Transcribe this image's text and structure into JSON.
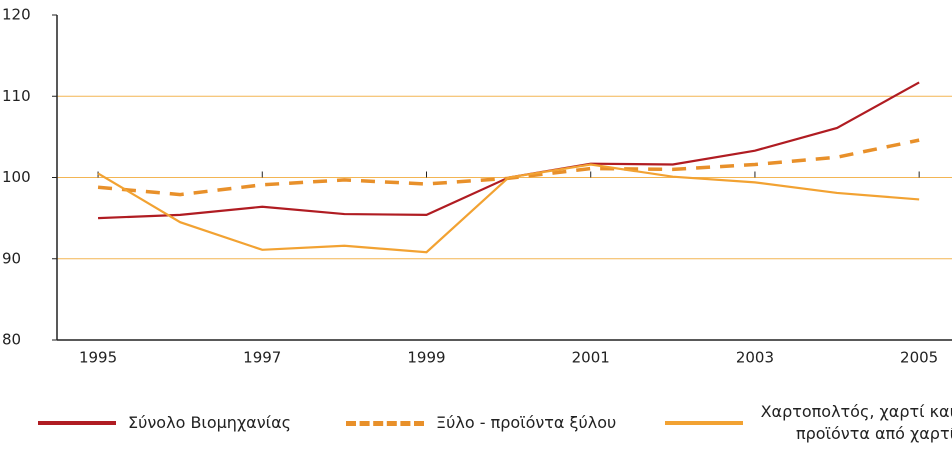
{
  "chart_data": {
    "type": "line",
    "x": [
      1995,
      1996,
      1997,
      1998,
      1999,
      2000,
      2001,
      2002,
      2003,
      2004,
      2005
    ],
    "series": [
      {
        "name": "Σύνολο Βιομηχανίας",
        "color": "#b01c22",
        "style": "solid",
        "values": [
          95.0,
          95.4,
          96.4,
          95.5,
          95.4,
          100.0,
          101.7,
          101.6,
          103.3,
          106.1,
          111.7
        ]
      },
      {
        "name": "Ξύλο - προϊόντα ξύλου",
        "color": "#e8902a",
        "style": "dashed",
        "values": [
          98.8,
          97.9,
          99.1,
          99.7,
          99.2,
          99.9,
          101.1,
          101.0,
          101.6,
          102.5,
          104.6
        ]
      },
      {
        "name": "Χαρτοπολτός, χαρτί και προϊόντα από χαρτί",
        "color": "#f2a232",
        "style": "solid",
        "values": [
          100.5,
          94.5,
          91.1,
          91.6,
          90.8,
          100.0,
          101.6,
          100.1,
          99.4,
          98.1,
          97.3
        ]
      }
    ],
    "xlim": [
      1994.5,
      2005.4
    ],
    "xticks": [
      1995,
      1997,
      1999,
      2001,
      2003,
      2005
    ],
    "ylim": [
      80,
      120
    ],
    "yticks": [
      80,
      90,
      100,
      110,
      120
    ],
    "grid": true,
    "grid_color": "#f3b553"
  }
}
